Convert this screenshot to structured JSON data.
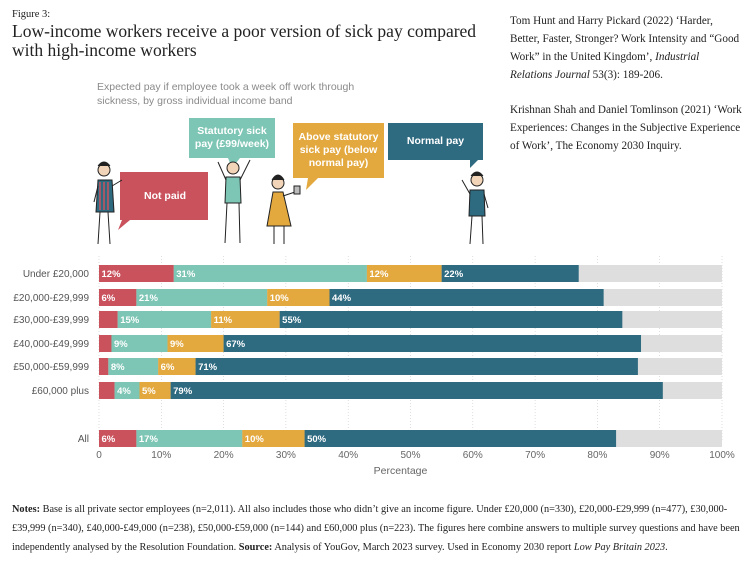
{
  "figure_label": "Figure 3:",
  "title": "Low-income workers receive a poor version of sick pay compared with high-income workers",
  "references": [
    {
      "authors": "Tom Hunt and Harry Pickard (2022) ‘Harder, Better, Faster, Stronger? Work Intensity and “Good Work” in the United Kingdom’,",
      "journal": "Industrial Relations Journal",
      "tail": " 53(3): 189-206."
    },
    {
      "authors": "Krishnan Shah and Daniel Tomlinson (2021) ‘Work Experiences: Changes in the Subjective Experience of Work’, The Economy 2030 Inquiry.",
      "journal": "",
      "tail": ""
    }
  ],
  "subtitle": "Expected pay if employee took a week off work through sickness, by gross individual income band",
  "callouts": {
    "not_paid": "Not paid",
    "statutory": "Statutory sick pay (£99/week)",
    "above": "Above statutory sick pay (below normal pay)",
    "normal": "Normal pay"
  },
  "colors": {
    "not_paid": "#c9525d",
    "statutory": "#7dc5b4",
    "above": "#e3a83e",
    "normal": "#2e6a80",
    "remainder": "#dedede"
  },
  "chart_data": {
    "type": "bar",
    "orientation": "horizontal",
    "stacked": true,
    "categories": [
      "Under £20,000",
      "£20,000-£29,999",
      "£30,000-£39,999",
      "£40,000-£49,999",
      "£50,000-£59,999",
      "£60,000 plus",
      "All"
    ],
    "series": [
      {
        "name": "Not paid",
        "values": [
          12,
          6,
          3,
          2,
          1.5,
          2.5,
          6
        ],
        "labels": [
          "12%",
          "6%",
          "",
          "",
          "",
          "",
          "6%"
        ]
      },
      {
        "name": "Statutory sick pay (£99/week)",
        "values": [
          31,
          21,
          15,
          9,
          8,
          4,
          17
        ],
        "labels": [
          "31%",
          "21%",
          "15%",
          "9%",
          "8%",
          "4%",
          "17%"
        ]
      },
      {
        "name": "Above statutory sick pay (below normal pay)",
        "values": [
          12,
          10,
          11,
          9,
          6,
          5,
          10
        ],
        "labels": [
          "12%",
          "10%",
          "11%",
          "9%",
          "6%",
          "5%",
          "10%"
        ]
      },
      {
        "name": "Normal pay",
        "values": [
          22,
          44,
          55,
          67,
          71,
          79,
          50
        ],
        "labels": [
          "22%",
          "44%",
          "55%",
          "67%",
          "71%",
          "79%",
          "50%"
        ]
      }
    ],
    "xlabel": "Percentage",
    "xlim": [
      0,
      100
    ],
    "xticks": [
      "0",
      "10%",
      "20%",
      "30%",
      "40%",
      "50%",
      "60%",
      "70%",
      "80%",
      "90%",
      "100%"
    ],
    "grid": true
  },
  "notes": {
    "label": "Notes:",
    "text": " Base is all private sector employees (n=2,011). All also includes those who didn’t give an income figure. Under £20,000 (n=330), £20,000-£29,999 (n=477), £30,000-£39,999 (n=340), £40,000-£49,000 (n=238), £50,000-£59,000 (n=144) and £60,000 plus (n=223). The figures here combine answers to multiple survey questions and have been independently analysed by the Resolution Foundation.",
    "source_label": "Source:",
    "source_text": " Analysis of YouGov, March 2023 survey. Used in Economy 2030 report ",
    "source_italic": "Low Pay Britain 2023",
    "source_end": "."
  }
}
